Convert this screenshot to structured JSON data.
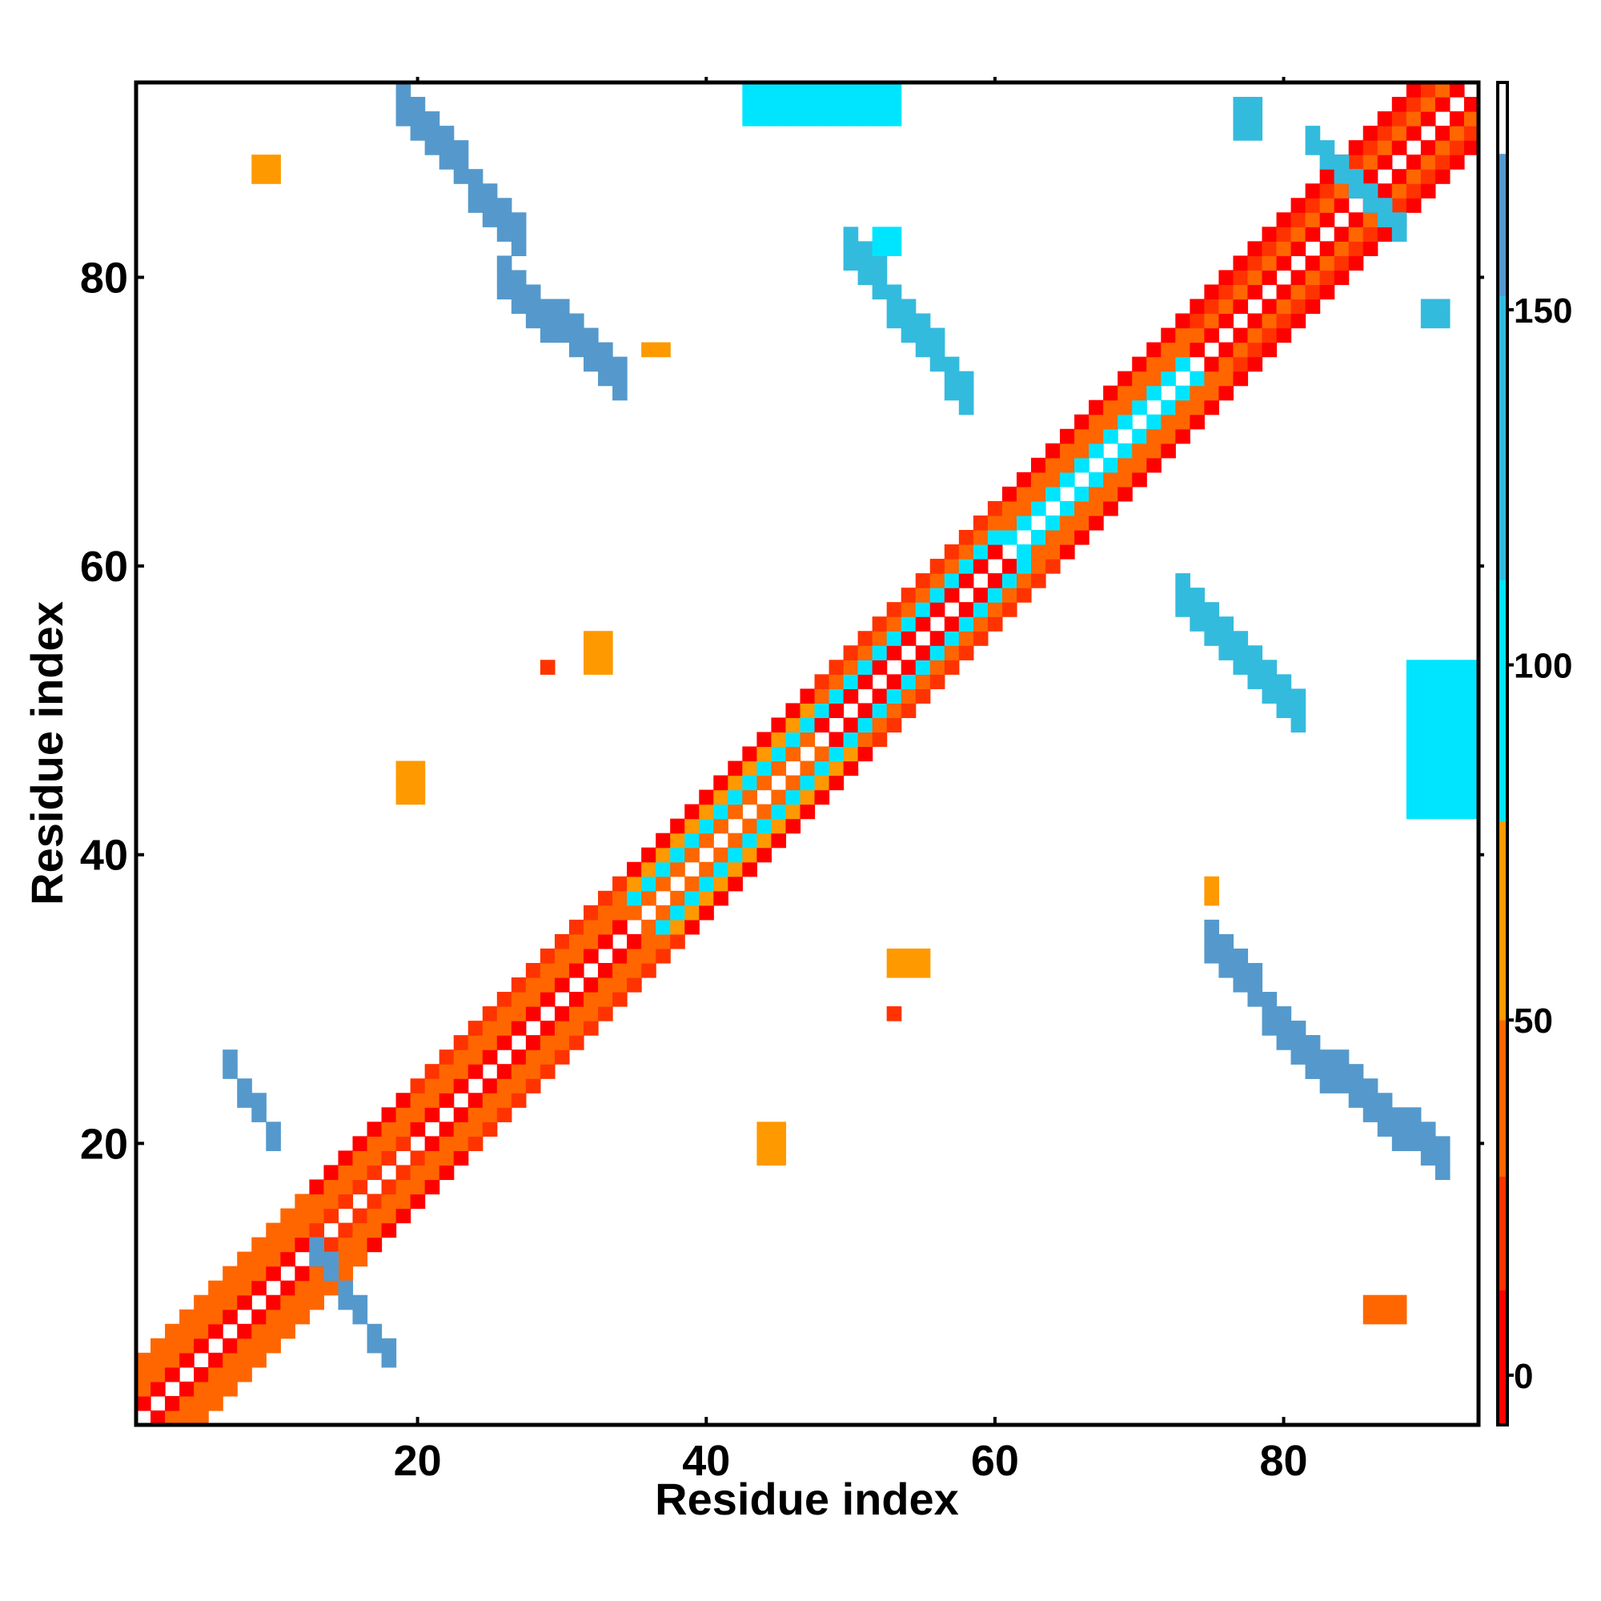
{
  "chart_data": {
    "type": "heatmap",
    "title": "",
    "xlabel": "Residue index",
    "ylabel": "Residue index",
    "n": 93,
    "x_ticks": [
      20,
      40,
      60,
      80
    ],
    "y_ticks": [
      20,
      40,
      60,
      80
    ],
    "x_tick_labels": [
      "20",
      "40",
      "60",
      "80"
    ],
    "y_tick_labels": [
      "20",
      "40",
      "60",
      "80"
    ],
    "colorbar": {
      "range": [
        -7,
        182
      ],
      "ticks": [
        0,
        50,
        100,
        150
      ],
      "tick_labels": [
        "0",
        "50",
        "100",
        "150"
      ],
      "stops": [
        {
          "from": -7,
          "to": 12,
          "color": "#ff0000"
        },
        {
          "from": 12,
          "to": 28,
          "color": "#ff3300"
        },
        {
          "from": 28,
          "to": 50,
          "color": "#ff6600"
        },
        {
          "from": 50,
          "to": 78,
          "color": "#ff9900"
        },
        {
          "from": 78,
          "to": 112,
          "color": "#00e5ff"
        },
        {
          "from": 112,
          "to": 152,
          "color": "#33bbdd"
        },
        {
          "from": 152,
          "to": 172,
          "color": "#5599cc"
        },
        {
          "from": 172,
          "to": 182,
          "color": "#ffffff"
        }
      ]
    },
    "diagonal_band": {
      "offsets": [
        1,
        2,
        3,
        4
      ],
      "colors": {
        "red": "#ff0000",
        "red_orange": "#ff3300",
        "orange": "#ff6600",
        "light_orange": "#ff9900",
        "cyan": "#00e5ff",
        "sky": "#33bbdd",
        "steel": "#5599cc"
      },
      "segments": [
        {
          "from": 1,
          "to": 12,
          "pattern": [
            "red",
            "orange",
            "orange",
            "orange"
          ]
        },
        {
          "from": 13,
          "to": 19,
          "pattern": [
            "red_orange",
            "orange",
            "orange",
            "red"
          ]
        },
        {
          "from": 20,
          "to": 34,
          "pattern": [
            "red",
            "orange",
            "orange",
            "red_orange"
          ]
        },
        {
          "from": 35,
          "to": 47,
          "pattern": [
            "orange",
            "cyan",
            "light_orange",
            "red"
          ]
        },
        {
          "from": 48,
          "to": 60,
          "pattern": [
            "red",
            "cyan",
            "orange",
            "red_orange"
          ]
        },
        {
          "from": 61,
          "to": 73,
          "pattern": [
            "cyan",
            "orange",
            "orange",
            "red"
          ]
        },
        {
          "from": 74,
          "to": 93,
          "pattern": [
            "red",
            "orange",
            "red_orange",
            "red"
          ]
        }
      ]
    },
    "contacts": [
      {
        "x": [
          7,
          10
        ],
        "y": [
          21,
          26
        ],
        "direction": "anti",
        "width": 2,
        "color": "steel"
      },
      {
        "x": [
          13,
          18
        ],
        "y": [
          6,
          13
        ],
        "direction": "anti",
        "width": 2,
        "color": "steel"
      },
      {
        "x": [
          19,
          27
        ],
        "y": [
          84,
          93
        ],
        "direction": "anti",
        "width": 3,
        "color": "steel"
      },
      {
        "x": [
          26,
          34
        ],
        "y": [
          74,
          81
        ],
        "direction": "anti",
        "width": 3,
        "color": "steel"
      },
      {
        "x": [
          50,
          58
        ],
        "y": [
          73,
          83
        ],
        "direction": "anti",
        "width": 3,
        "color": "sky"
      },
      {
        "x": [
          73,
          81
        ],
        "y": [
          51,
          59
        ],
        "direction": "anti",
        "width": 3,
        "color": "sky"
      },
      {
        "x": [
          75,
          82
        ],
        "y": [
          27,
          35
        ],
        "direction": "anti",
        "width": 3,
        "color": "steel"
      },
      {
        "x": [
          81,
          91
        ],
        "y": [
          20,
          28
        ],
        "direction": "anti",
        "width": 3,
        "color": "steel"
      },
      {
        "x": [
          82,
          88
        ],
        "y": [
          84,
          90
        ],
        "direction": "anti",
        "width": 2,
        "color": "sky"
      },
      {
        "x": [
          43,
          53
        ],
        "y": [
          91,
          94
        ],
        "direction": "flat",
        "width": 2,
        "color": "cyan"
      },
      {
        "x": [
          89,
          93
        ],
        "y": [
          43,
          53
        ],
        "direction": "flat",
        "width": 2,
        "color": "cyan"
      },
      {
        "x": [
          19,
          20
        ],
        "y": [
          44,
          46
        ],
        "direction": "flat",
        "width": 1,
        "color": "light_orange"
      },
      {
        "x": [
          44,
          45
        ],
        "y": [
          19,
          21
        ],
        "direction": "flat",
        "width": 1,
        "color": "light_orange"
      },
      {
        "x": [
          9,
          10
        ],
        "y": [
          87,
          88
        ],
        "direction": "flat",
        "width": 1,
        "color": "light_orange"
      },
      {
        "x": [
          32,
          33
        ],
        "y": [
          53,
          55
        ],
        "direction": "flat",
        "width": 1,
        "color": "light_orange"
      },
      {
        "x": [
          53,
          55
        ],
        "y": [
          32,
          33
        ],
        "direction": "flat",
        "width": 1,
        "color": "light_orange"
      },
      {
        "x": [
          86,
          88
        ],
        "y": [
          8,
          9
        ],
        "direction": "flat",
        "width": 1,
        "color": "orange"
      },
      {
        "x": [
          29,
          29
        ],
        "y": [
          53,
          53
        ],
        "direction": "flat",
        "width": 1,
        "color": "red_orange"
      },
      {
        "x": [
          53,
          53
        ],
        "y": [
          29,
          29
        ],
        "direction": "flat",
        "width": 1,
        "color": "red_orange"
      },
      {
        "x": [
          36,
          37
        ],
        "y": [
          75,
          75
        ],
        "direction": "flat",
        "width": 1,
        "color": "light_orange"
      },
      {
        "x": [
          75,
          75
        ],
        "y": [
          37,
          38
        ],
        "direction": "flat",
        "width": 1,
        "color": "light_orange"
      },
      {
        "x": [
          77,
          78
        ],
        "y": [
          90,
          92
        ],
        "direction": "flat",
        "width": 1,
        "color": "sky"
      },
      {
        "x": [
          90,
          91
        ],
        "y": [
          77,
          78
        ],
        "direction": "flat",
        "width": 1,
        "color": "sky"
      },
      {
        "x": [
          52,
          53
        ],
        "y": [
          82,
          83
        ],
        "direction": "flat",
        "width": 1,
        "color": "cyan"
      }
    ],
    "legend": "colorbar-right",
    "grid": false
  }
}
